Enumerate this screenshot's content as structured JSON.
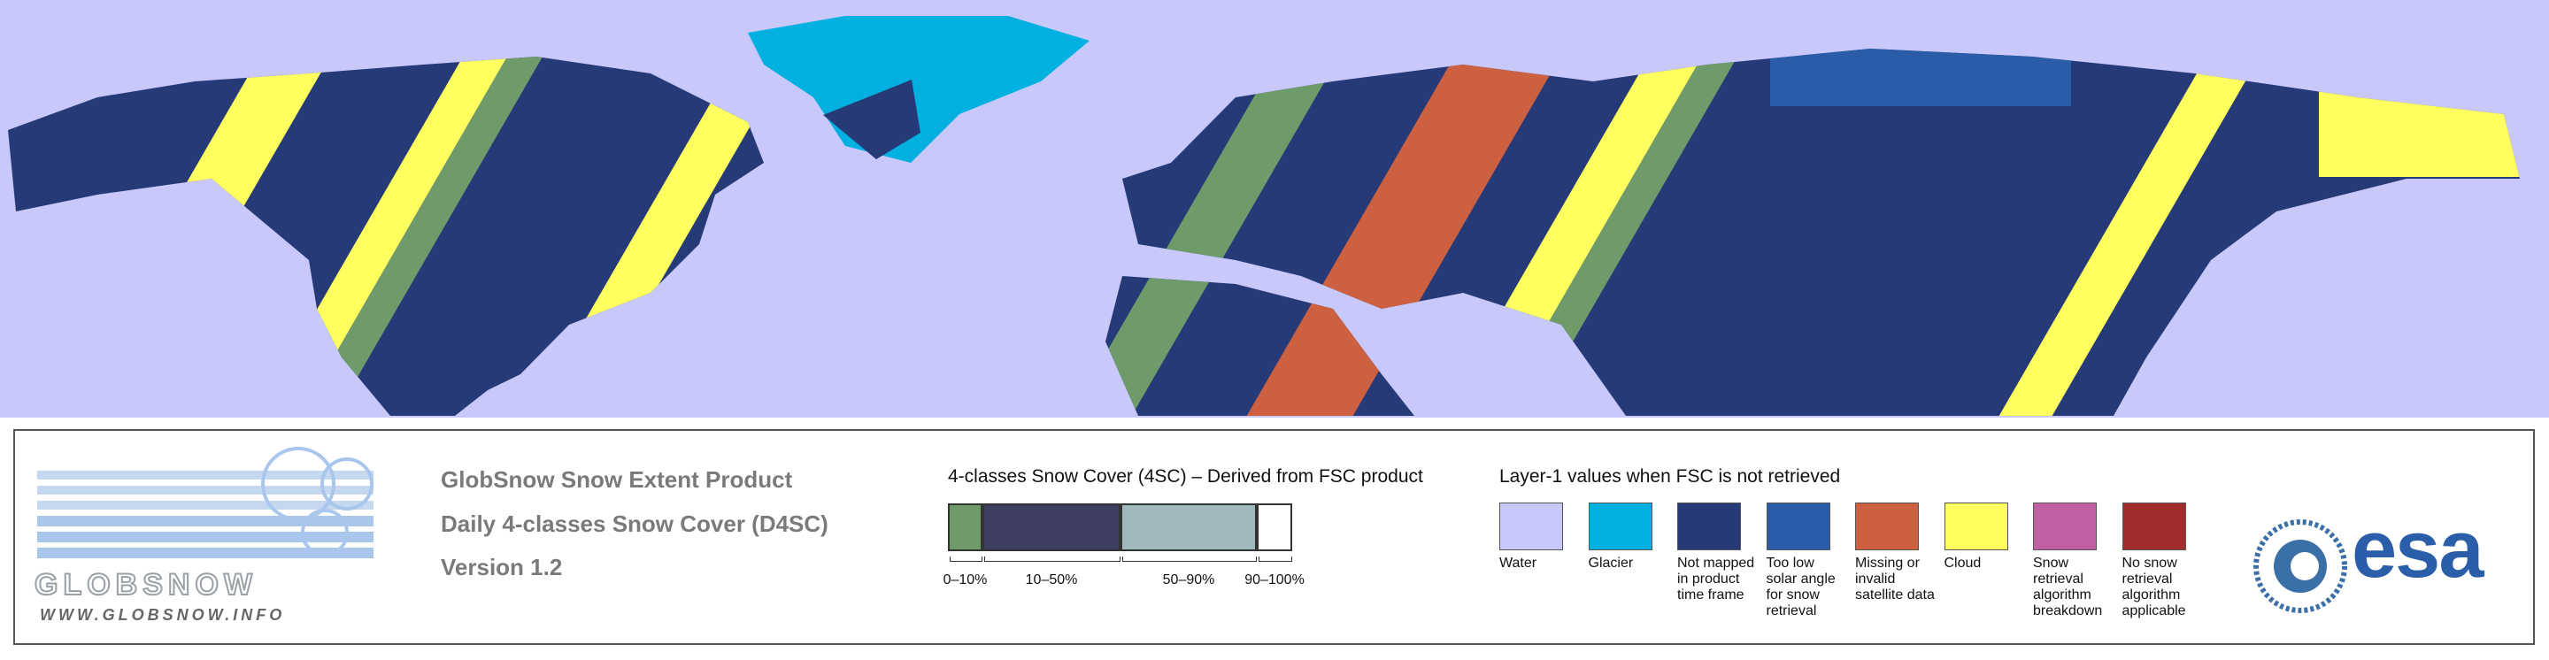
{
  "logo": {
    "name": "GLOBSNOW",
    "url": "WWW.GLOBSNOW.INFO"
  },
  "product": {
    "title": "GlobSnow Snow Extent Product",
    "subtitle": "Daily 4-classes Snow Cover (D4SC)",
    "version": "Version 1.2"
  },
  "four_class": {
    "title": "4-classes Snow Cover (4SC) – Derived from FSC product",
    "classes": [
      {
        "label": "0–10%",
        "color": "#6f9a6a"
      },
      {
        "label": "10–50%",
        "color": "#3e3e5e"
      },
      {
        "label": "50–90%",
        "color": "#a0b8bc"
      },
      {
        "label": "90–100%",
        "color": "#ffffff"
      }
    ]
  },
  "layer1": {
    "title": "Layer-1 values when FSC is not retrieved",
    "items": [
      {
        "label": "Water",
        "color": "#c8c8fa"
      },
      {
        "label": "Glacier",
        "color": "#00b0e0"
      },
      {
        "label": "Not mapped in product time frame",
        "color": "#263a78"
      },
      {
        "label": "Too low solar angle for snow retrieval",
        "color": "#2a5ca8"
      },
      {
        "label": "Missing or invalid satellite data",
        "color": "#cc6040"
      },
      {
        "label": "Cloud",
        "color": "#ffff60"
      },
      {
        "label": "Snow retrieval algorithm breakdown",
        "color": "#c060a0"
      },
      {
        "label": "No snow retrieval algorithm applicable",
        "color": "#a02c2c"
      }
    ]
  },
  "esa": "esa"
}
